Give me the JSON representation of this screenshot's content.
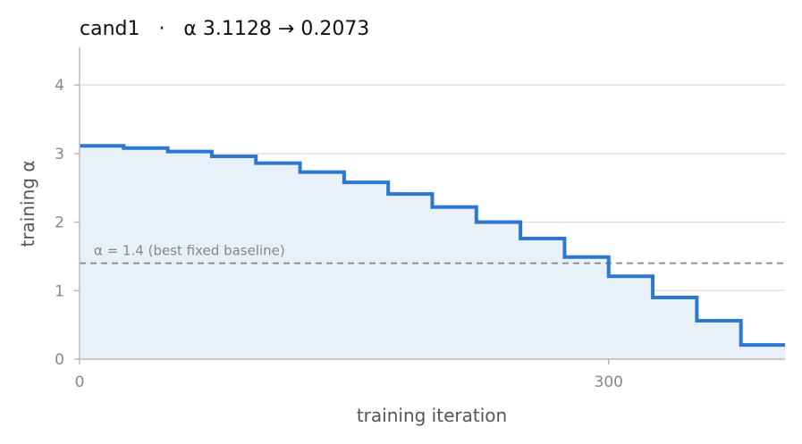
{
  "chart_data": {
    "type": "line",
    "step": true,
    "title": "cand1   ·   α 3.1128 → 0.2073",
    "xlabel": "training iteration",
    "ylabel": "training α",
    "xlim": [
      0,
      400
    ],
    "ylim": [
      0,
      4.55
    ],
    "x_ticks": [
      0,
      300
    ],
    "y_ticks": [
      0,
      1,
      2,
      3,
      4
    ],
    "grid": "horizontal",
    "fill_under": true,
    "series": [
      {
        "color": "#2b78d4",
        "fill_color": "#e8f0fa",
        "points": [
          {
            "x": 0,
            "y": 3.1128
          },
          {
            "x": 25,
            "y": 3.08
          },
          {
            "x": 50,
            "y": 3.03
          },
          {
            "x": 75,
            "y": 2.96
          },
          {
            "x": 100,
            "y": 2.86
          },
          {
            "x": 125,
            "y": 2.73
          },
          {
            "x": 150,
            "y": 2.58
          },
          {
            "x": 175,
            "y": 2.41
          },
          {
            "x": 200,
            "y": 2.22
          },
          {
            "x": 225,
            "y": 2.0
          },
          {
            "x": 250,
            "y": 1.76
          },
          {
            "x": 275,
            "y": 1.49
          },
          {
            "x": 300,
            "y": 1.21
          },
          {
            "x": 325,
            "y": 0.9
          },
          {
            "x": 350,
            "y": 0.56
          },
          {
            "x": 375,
            "y": 0.2073
          },
          {
            "x": 400,
            "y": 0.2073
          }
        ]
      }
    ],
    "reference_line": {
      "y": 1.4,
      "label": "α = 1.4 (best fixed baseline)",
      "style": "dashed",
      "color": "#888888"
    },
    "colors": {
      "grid": "#e2e2d8",
      "axis": "#bbbbbb"
    }
  }
}
